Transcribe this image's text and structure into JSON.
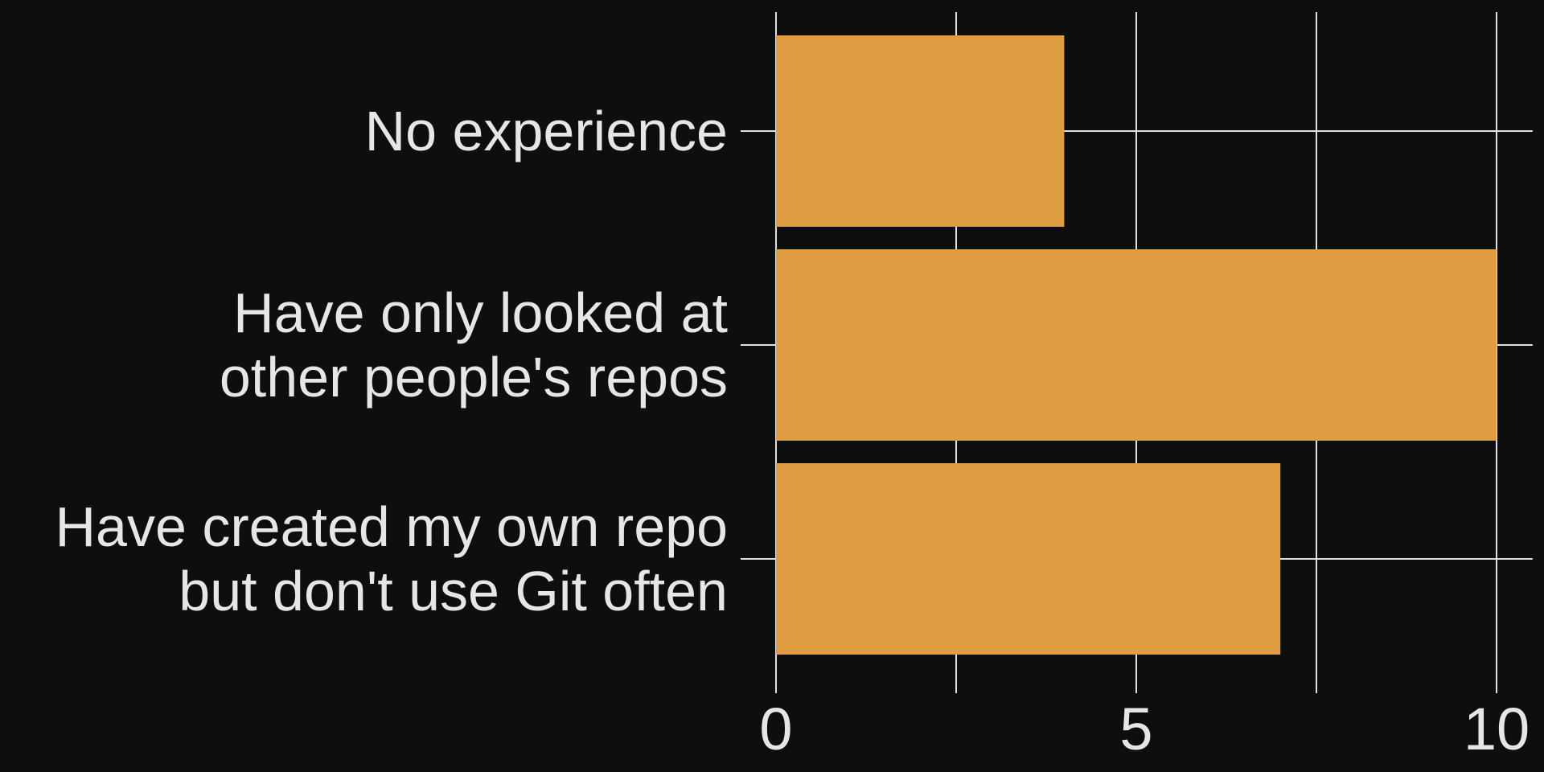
{
  "chart_data": {
    "type": "bar",
    "orientation": "horizontal",
    "categories": [
      [
        "No experience"
      ],
      [
        "Have only looked at",
        "other people's repos"
      ],
      [
        "Have created my own repo",
        "but don't use Git often"
      ]
    ],
    "values": [
      4,
      10,
      7
    ],
    "xlim": [
      0,
      10.5
    ],
    "xticks": [
      0,
      5,
      10
    ],
    "xtick_labels": [
      "0",
      "5",
      "10"
    ],
    "minor_gridlines": [
      2.5,
      7.5
    ],
    "grid": true,
    "title": "",
    "xlabel": "",
    "ylabel": "",
    "colors": {
      "background": "#0e0e0e",
      "bar": "#e09e42",
      "grid": "#e0e0e0",
      "text": "#e6e6e6"
    }
  }
}
